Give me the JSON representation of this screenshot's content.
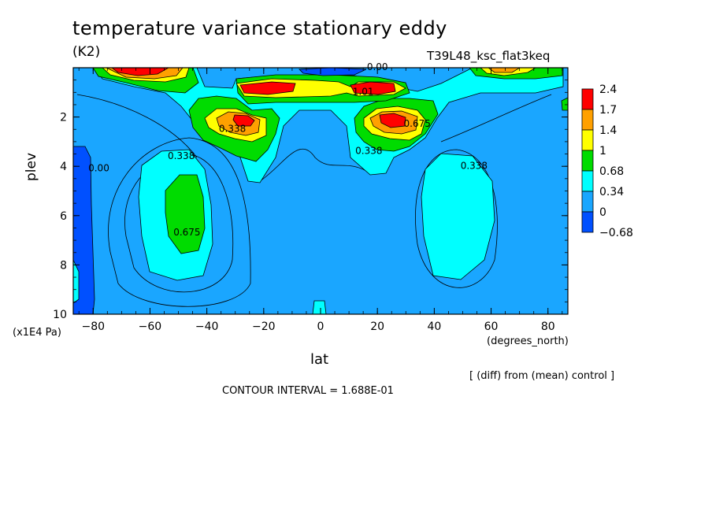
{
  "header": {
    "title": "temperature variance stationary eddy",
    "units": "(K2)",
    "run_name": "T39L48_ksc_flat3keq"
  },
  "footer": {
    "diff_note": "[ (diff) from (mean) control ]",
    "contour_interval": "CONTOUR INTERVAL = 1.688E-01"
  },
  "chart_data": {
    "type": "heatmap",
    "title": "temperature variance stationary eddy",
    "xlabel": "lat",
    "ylabel": "plev",
    "x_units": "(degrees_north)",
    "y_units": "(x1E4 Pa)",
    "xlim": [
      -87,
      87
    ],
    "ylim": [
      10,
      0
    ],
    "x_ticks": [
      -80,
      -60,
      -40,
      -20,
      0,
      20,
      40,
      60,
      80
    ],
    "y_ticks": [
      2,
      4,
      6,
      8,
      10
    ],
    "colorbar": {
      "labels": [
        "2.4",
        "1.7",
        "1.4",
        "1",
        "0.68",
        "0.34",
        "0",
        "-0.68"
      ],
      "colors": [
        "#ff0000",
        "#ffa000",
        "#ffff00",
        "#00dc00",
        "#00ffff",
        "#1aa6ff",
        "#0050ff"
      ]
    },
    "contour_labels": [
      {
        "text": "0.00",
        "lat": 20,
        "plev": 0.1
      },
      {
        "text": "0.338",
        "lat": -31,
        "plev": 2.6
      },
      {
        "text": "0.338",
        "lat": -49,
        "plev": 3.7
      },
      {
        "text": "0.00",
        "lat": -78,
        "plev": 4.2
      },
      {
        "text": "0.675",
        "lat": -47,
        "plev": 6.8
      },
      {
        "text": "0.338",
        "lat": 17,
        "plev": 3.5
      },
      {
        "text": "0.675",
        "lat": 34,
        "plev": 2.4
      },
      {
        "text": "1.01",
        "lat": 15,
        "plev": 1.1
      },
      {
        "text": "0.338",
        "lat": 54,
        "plev": 4.1
      }
    ]
  }
}
